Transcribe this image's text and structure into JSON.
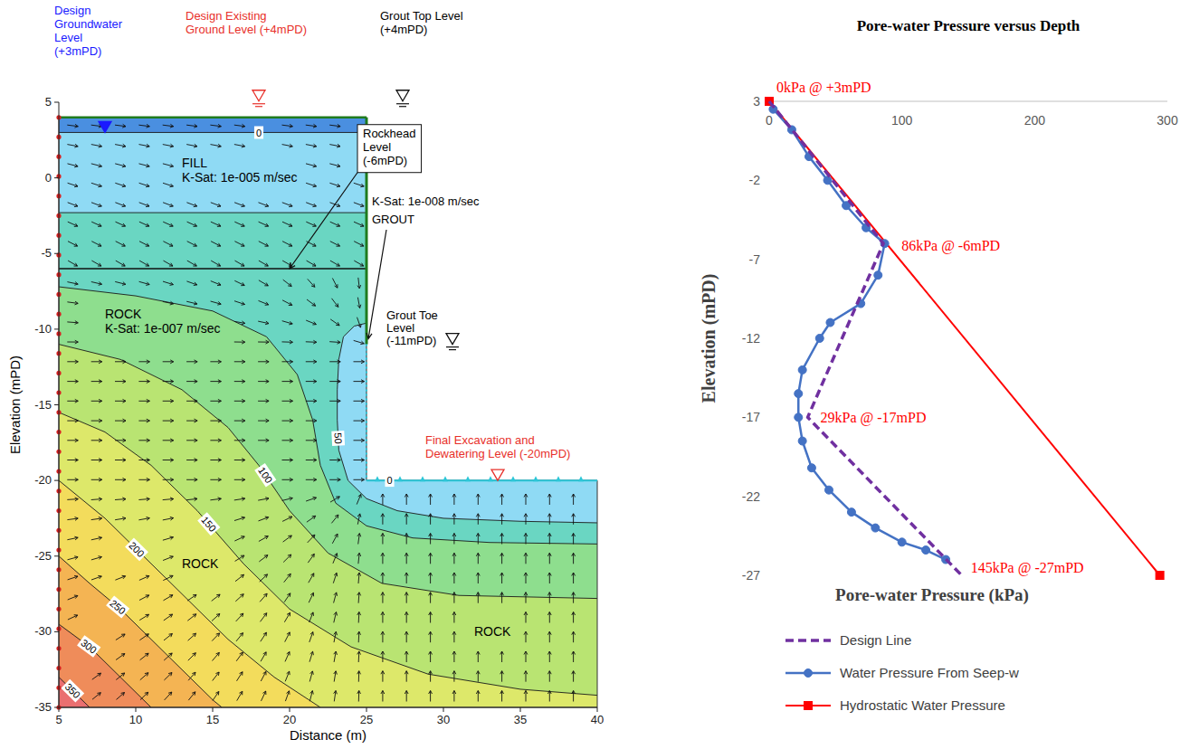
{
  "chart_data": [
    {
      "type": "contour",
      "x_label": "Distance (m)",
      "y_label": "Elevation (mPD)",
      "xlim": [
        5,
        40
      ],
      "ylim": [
        -35,
        5
      ],
      "xticks": [
        5,
        10,
        15,
        20,
        25,
        30,
        35,
        40
      ],
      "yticks": [
        -35,
        -30,
        -25,
        -20,
        -15,
        -10,
        -5,
        0,
        5
      ],
      "geometry": {
        "ground_level": 4,
        "groundwater_level": 3,
        "rockhead_level": -6,
        "grout_top_level": 4,
        "grout_toe_level": -11,
        "excavation_level": -20,
        "wall_x": 25
      },
      "annotations": {
        "groundwater": "Design Groundwater Level (+3mPD)",
        "ground": "Design Existing Ground Level (+4mPD)",
        "grout_top": "Grout Top Level (+4mPD)",
        "rockhead": "Rockhead Level (-6mPD)",
        "grout_ksat": "K-Sat: 1e-008 m/sec",
        "grout": "GROUT",
        "grout_toe": "Grout Toe Level (-11mPD)",
        "excavation": "Final Excavation and Dewatering Level (-20mPD)"
      },
      "materials": [
        {
          "name": "FILL",
          "k_sat": "K-Sat: 1e-005 m/sec"
        },
        {
          "name": "ROCK",
          "k_sat": "K-Sat: 1e-007 m/sec"
        },
        {
          "name": "ROCK"
        },
        {
          "name": "ROCK"
        }
      ],
      "contours": [
        {
          "level": 0,
          "label": "0",
          "x": [
            5,
            25
          ],
          "y": [
            3,
            3
          ]
        },
        {
          "level": 0,
          "label": "0",
          "x": [
            25,
            40
          ],
          "y": [
            -20,
            -20
          ]
        },
        {
          "level": 50,
          "x": [
            5,
            25
          ],
          "y": [
            -2.3,
            -2.3
          ]
        },
        {
          "level": 50,
          "label": "50",
          "x": [
            25,
            24.2,
            23.5,
            23.2,
            23.1,
            23.1,
            23.2,
            23.8,
            25,
            27,
            30,
            35,
            40
          ],
          "y": [
            -9.6,
            -9.8,
            -10.5,
            -12,
            -14,
            -16,
            -18,
            -20,
            -21.2,
            -22,
            -22.5,
            -22.7,
            -22.8
          ]
        },
        {
          "level": 75,
          "x": [
            5,
            10,
            15,
            18.5,
            20.5,
            21.5,
            22,
            23,
            25,
            28,
            33,
            40
          ],
          "y": [
            -7.2,
            -7.8,
            -8.8,
            -10.5,
            -13,
            -16,
            -19,
            -21.5,
            -23,
            -23.8,
            -24.1,
            -24.2
          ]
        },
        {
          "level": 100,
          "label": "100",
          "x": [
            5,
            9,
            13,
            16,
            18,
            20,
            22.5,
            26,
            31,
            40
          ],
          "y": [
            -11,
            -12,
            -14,
            -16.5,
            -19,
            -22,
            -24.8,
            -26.8,
            -27.6,
            -27.8
          ]
        },
        {
          "level": 150,
          "label": "150",
          "x": [
            5,
            8,
            11,
            14,
            17,
            20,
            24,
            29,
            35,
            40
          ],
          "y": [
            -15.5,
            -16.8,
            -19,
            -22,
            -25.5,
            -28.5,
            -31,
            -32.8,
            -33.8,
            -34.2
          ]
        },
        {
          "level": 200,
          "label": "200",
          "x": [
            5,
            8,
            10,
            13,
            16,
            19,
            22
          ],
          "y": [
            -20,
            -22.5,
            -24.5,
            -27.5,
            -30.5,
            -33,
            -35
          ]
        },
        {
          "level": 250,
          "label": "250",
          "x": [
            5,
            7,
            9,
            12,
            15,
            15.6
          ],
          "y": [
            -25,
            -26.8,
            -28.5,
            -31.5,
            -34.5,
            -35
          ]
        },
        {
          "level": 300,
          "label": "300",
          "x": [
            5,
            7,
            9,
            11
          ],
          "y": [
            -29.5,
            -31,
            -33,
            -35
          ]
        },
        {
          "level": 350,
          "label": "350",
          "x": [
            5,
            5.5,
            7
          ],
          "y": [
            -33,
            -33.5,
            -35
          ]
        }
      ]
    },
    {
      "type": "line",
      "title": "Pore-water Pressure versus Depth",
      "x_label": "Pore-water Pressure (kPa)",
      "y_label": "Elevation (mPD)",
      "xlim": [
        0,
        300
      ],
      "ylim": [
        -27,
        3
      ],
      "xticks": [
        0,
        100,
        200,
        300
      ],
      "yticks": [
        -27,
        -22,
        -17,
        -12,
        -7,
        -2,
        3
      ],
      "grid": false,
      "legend": "bottom",
      "series": [
        {
          "name": "Design Line",
          "color": "#7030a0",
          "line_style": "dashed",
          "marker": "none",
          "x": [
            0,
            86,
            29,
            145
          ],
          "values": [
            3,
            -6,
            -17,
            -27
          ]
        },
        {
          "name": "Water Pressure From Seep-w",
          "color": "#4472c4",
          "line_style": "solid",
          "marker": "circle",
          "x": [
            3,
            17,
            30,
            44,
            58,
            73,
            87,
            82,
            69,
            46,
            38,
            25,
            22,
            22,
            25,
            32,
            45,
            62,
            80,
            100,
            118,
            133
          ],
          "values": [
            2.5,
            1.2,
            -0.5,
            -2,
            -3.6,
            -5,
            -6,
            -8,
            -9.8,
            -11,
            -12,
            -14,
            -15.5,
            -17,
            -18.5,
            -20.2,
            -21.6,
            -23,
            -24,
            -24.9,
            -25.4,
            -26
          ]
        },
        {
          "name": "Hydrostatic Water Pressure",
          "color": "#ff0000",
          "line_style": "solid",
          "marker": "square",
          "x": [
            0,
            294.3
          ],
          "values": [
            3,
            -27
          ]
        }
      ],
      "annotations": [
        {
          "text": "0kPa @ +3mPD",
          "x": 0,
          "y": 3
        },
        {
          "text": "86kPa @ -6mPD",
          "x": 86,
          "y": -6
        },
        {
          "text": "29kPa @ -17mPD",
          "x": 29,
          "y": -17
        },
        {
          "text": "145kPa @ -27mPD",
          "x": 145,
          "y": -27
        }
      ]
    }
  ]
}
